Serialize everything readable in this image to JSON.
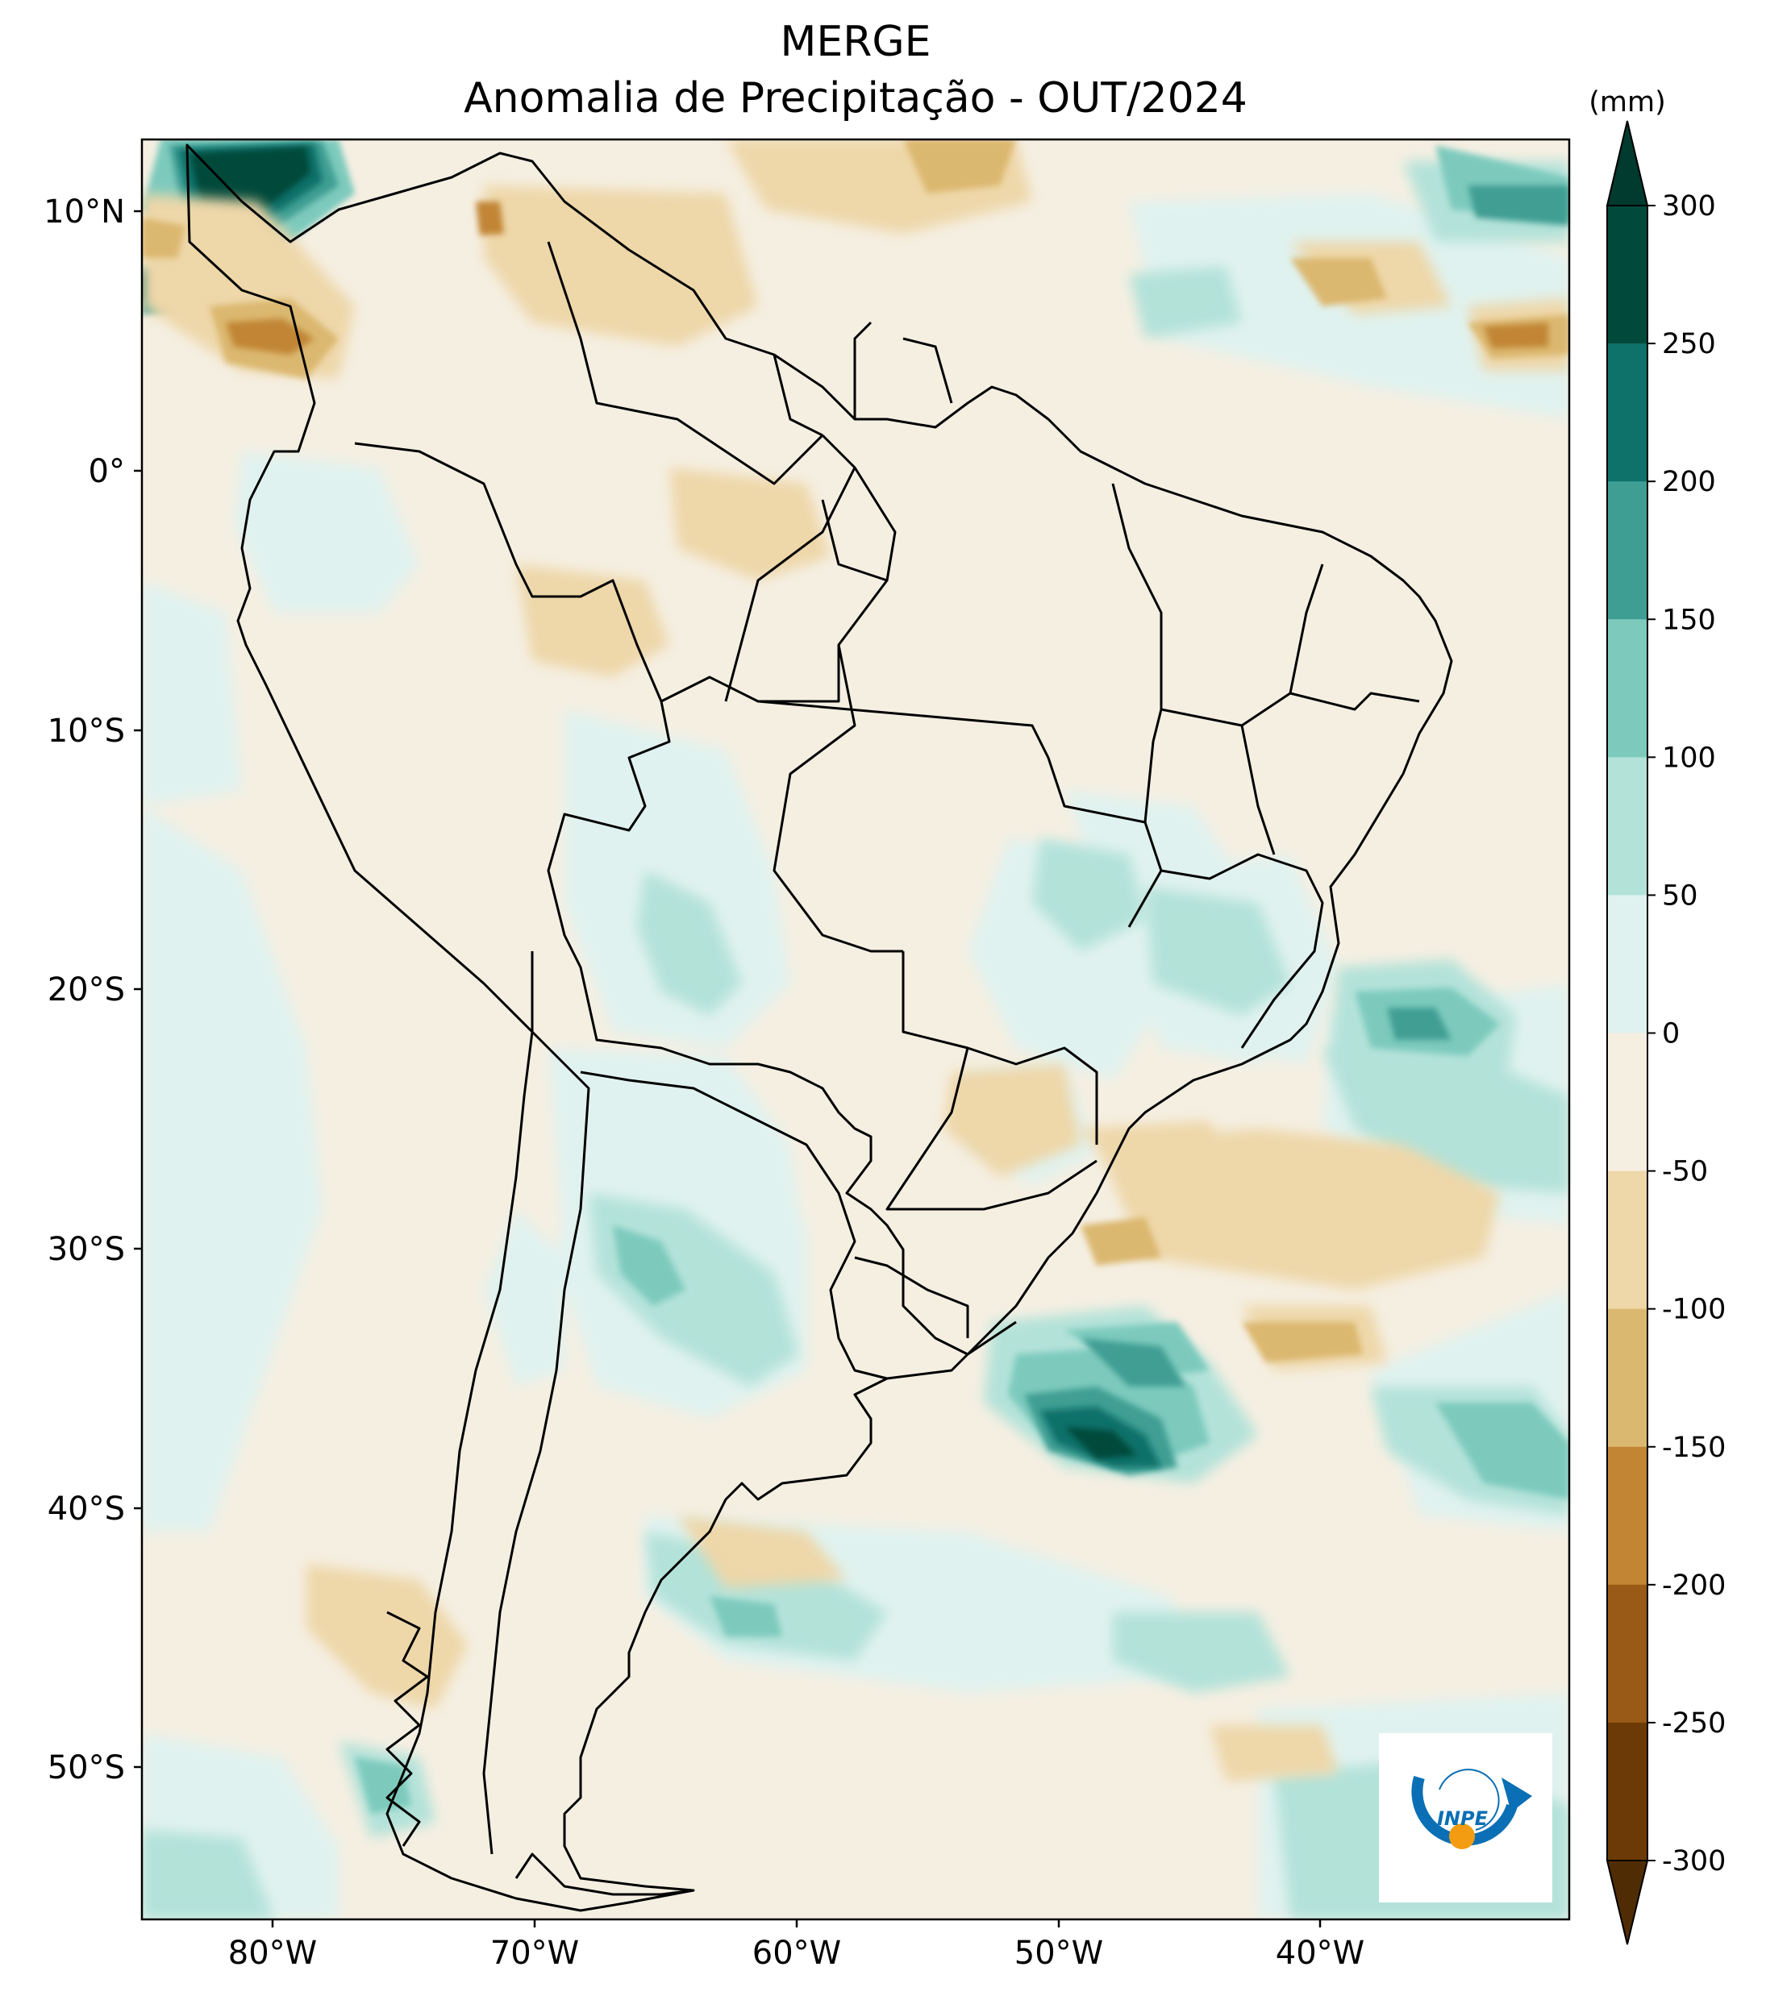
{
  "title": {
    "line1": "MERGE",
    "line2": "Anomalia de Precipitação - OUT/2024"
  },
  "map": {
    "lat_labels": [
      "10°N",
      "0°",
      "10°S",
      "20°S",
      "30°S",
      "40°S",
      "50°S"
    ],
    "lon_labels": [
      "80°W",
      "70°W",
      "60°W",
      "50°W",
      "40°W"
    ],
    "extent": {
      "lon_min": -85.0,
      "lon_max": -30.5,
      "lat_min": -56.0,
      "lat_max": 12.7
    }
  },
  "colorbar": {
    "unit_label": "(mm)",
    "ticks": [
      "300",
      "250",
      "200",
      "150",
      "100",
      "50",
      "0",
      "-50",
      "-100",
      "-150",
      "-200",
      "-250",
      "-300"
    ],
    "colors_top_to_bottom": [
      "#01493a",
      "#0e716a",
      "#3f9e93",
      "#7dcabd",
      "#b3e2d9",
      "#e0f2ef",
      "#f5efe2",
      "#eed7a9",
      "#dbb870",
      "#c18534",
      "#985a16",
      "#6c3a07"
    ],
    "over_color": "#013a2e",
    "under_color": "#502c05"
  },
  "logo": {
    "text": "INPE"
  }
}
